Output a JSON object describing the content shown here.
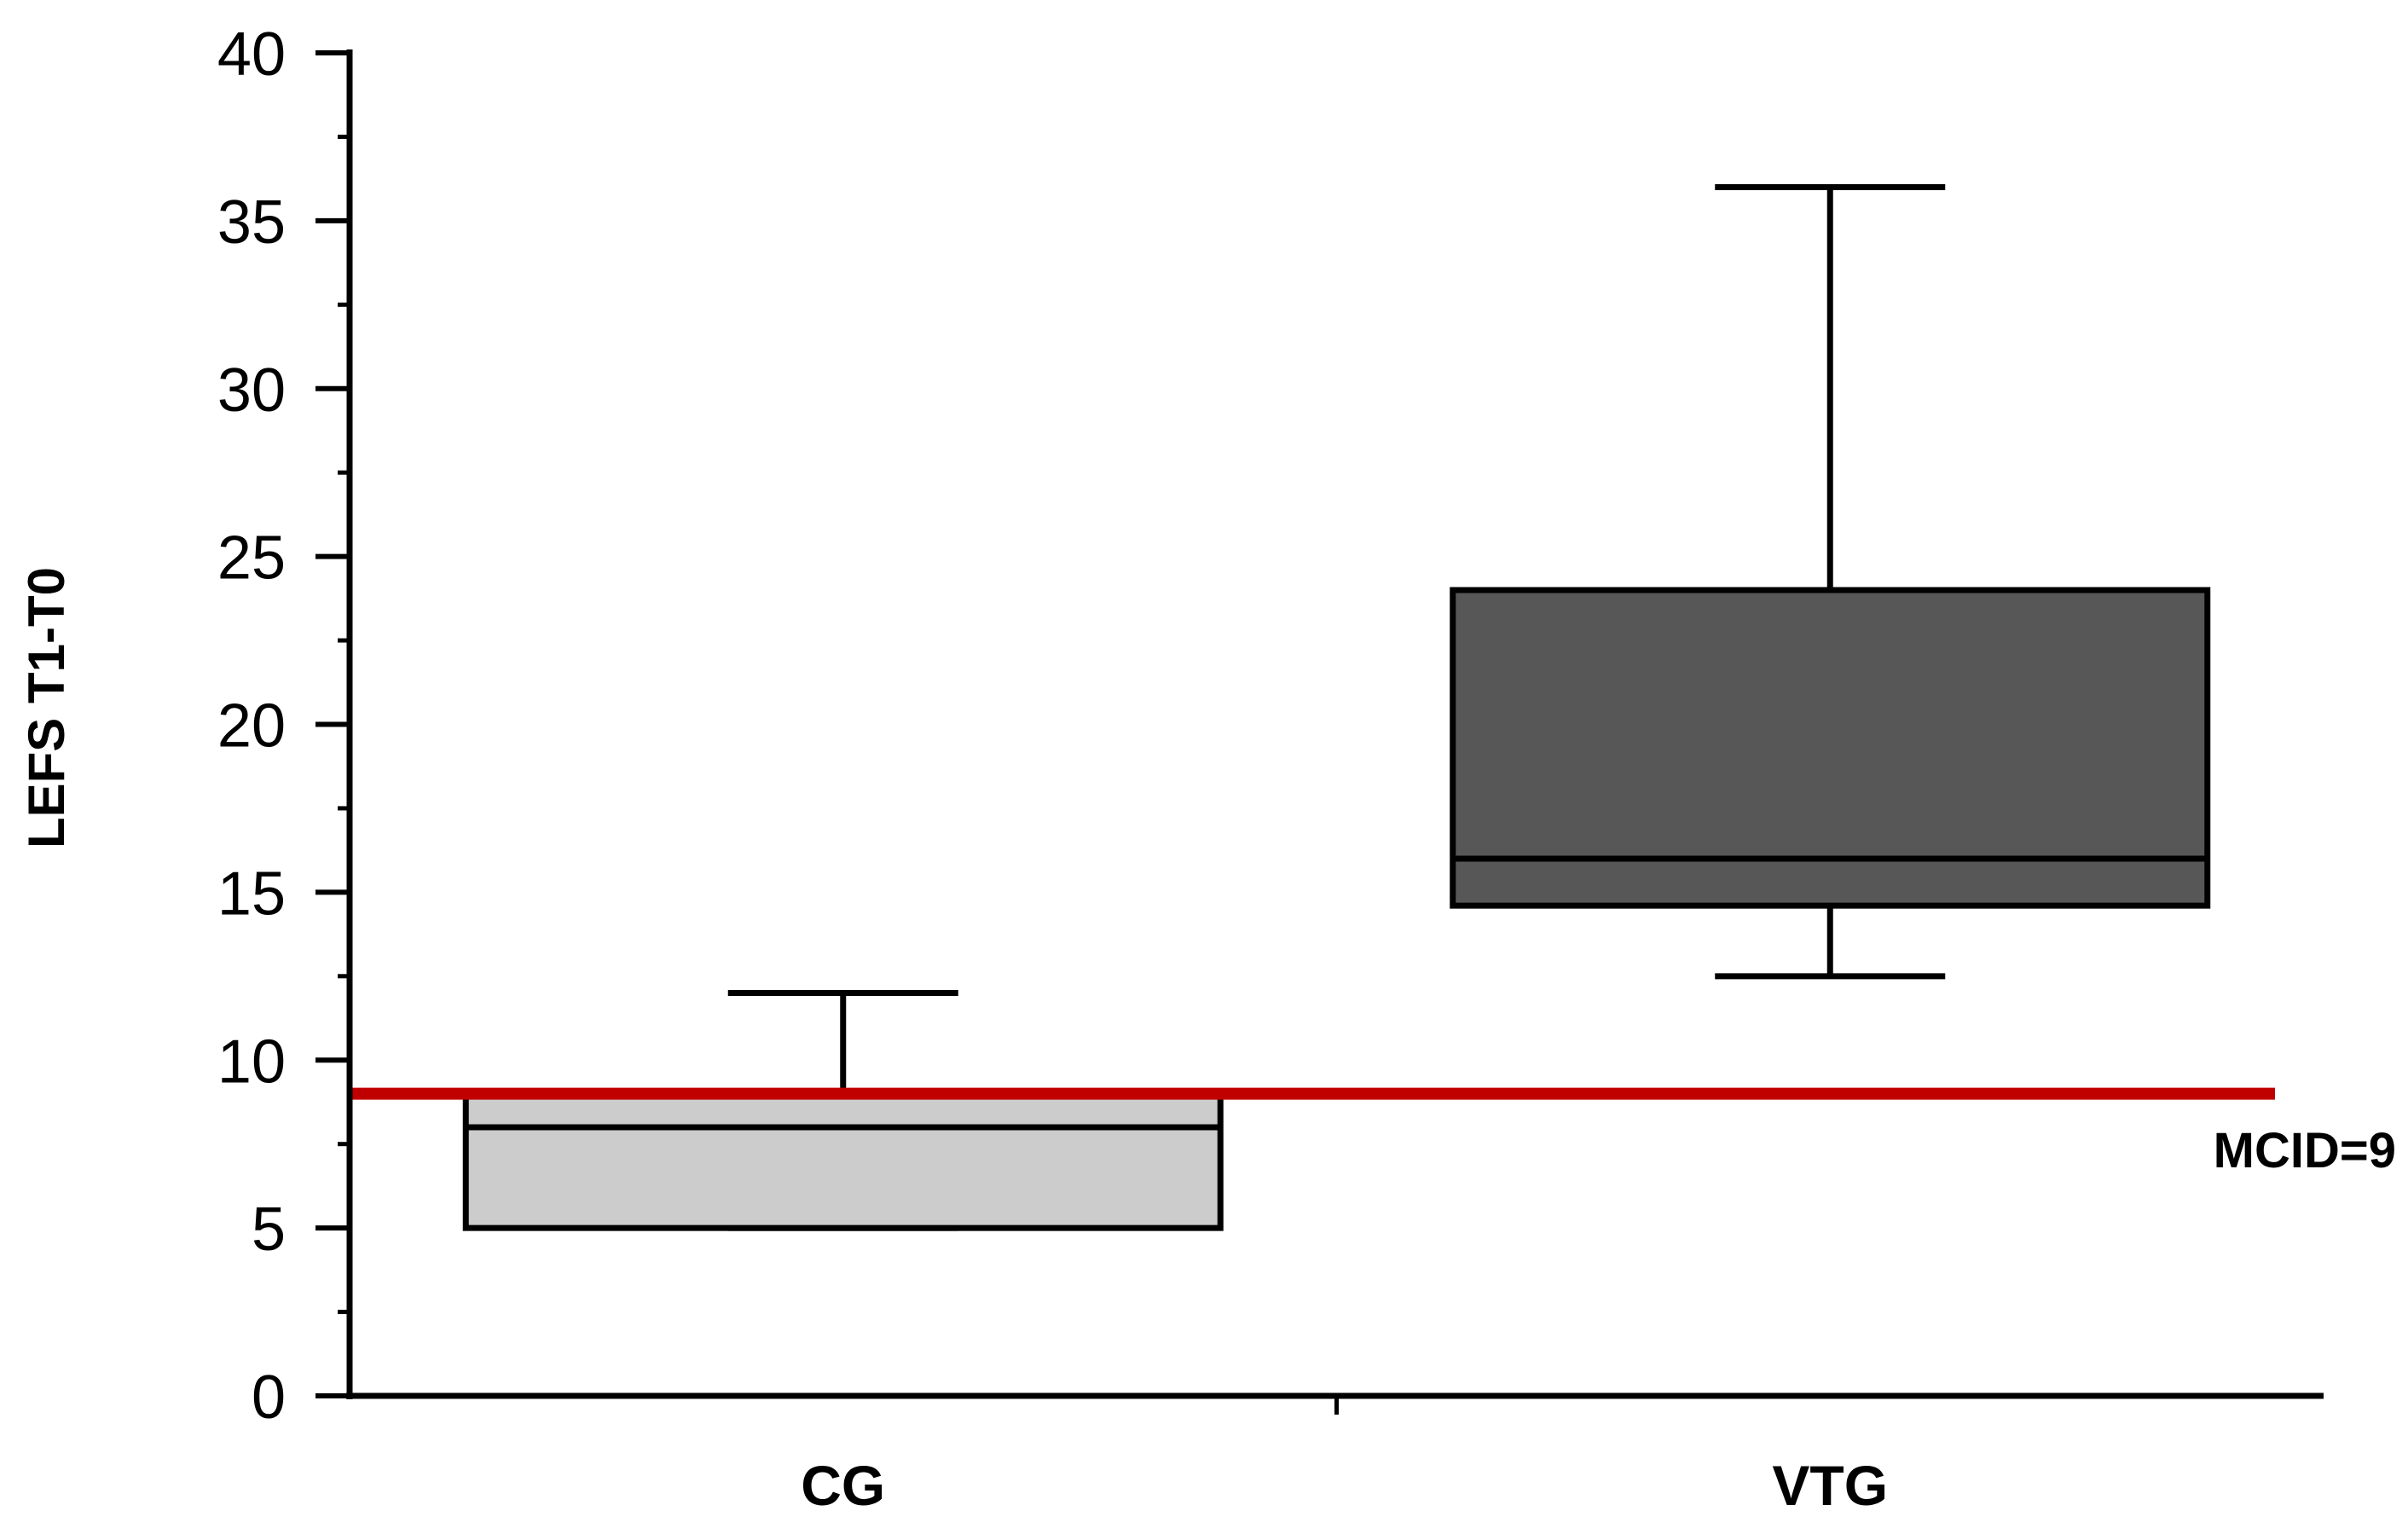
{
  "chart_data": {
    "type": "box",
    "title": "",
    "xlabel": "",
    "ylabel": "LEFS T1-T0",
    "ylim": [
      0,
      40
    ],
    "yticks": [
      0,
      5,
      10,
      15,
      20,
      25,
      30,
      35,
      40
    ],
    "yminor_step": 2.5,
    "grid": false,
    "categories": [
      "CG",
      "VTG"
    ],
    "boxes": [
      {
        "category": "CG",
        "whisker_low": 5,
        "q1": 5,
        "median": 8,
        "q3": 9,
        "whisker_high": 12,
        "color": "#cccccc"
      },
      {
        "category": "VTG",
        "whisker_low": 12.5,
        "q1": 14.6,
        "median": 16,
        "q3": 24,
        "whisker_high": 36,
        "color": "#575757"
      }
    ],
    "reference_line": {
      "value": 9,
      "label": "MCID=9",
      "color": "#c00000"
    }
  }
}
